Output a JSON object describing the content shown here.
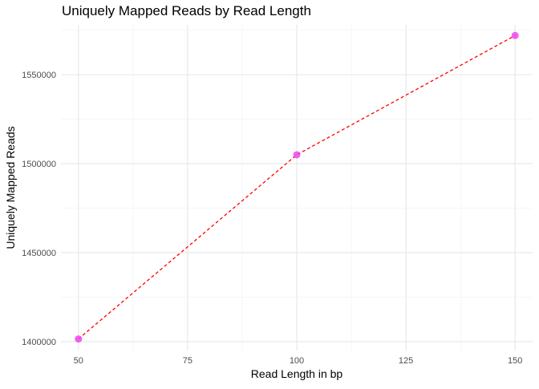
{
  "chart_data": {
    "type": "line",
    "title": "Uniquely Mapped Reads by Read Length",
    "xlabel": "Read Length in bp",
    "ylabel": "Uniquely Mapped Reads",
    "x": [
      50,
      100,
      150
    ],
    "series": [
      {
        "values": [
          1401500,
          1505000,
          1572000
        ]
      }
    ],
    "xlim": [
      46,
      154
    ],
    "ylim": [
      1395000,
      1578000
    ],
    "x_ticks": [
      50,
      75,
      100,
      125,
      150
    ],
    "x_tick_labels": [
      "50",
      "75",
      "100",
      "125",
      "150"
    ],
    "y_ticks": [
      1400000,
      1450000,
      1500000,
      1550000
    ],
    "y_tick_labels": [
      "1400000",
      "1450000",
      "1500000",
      "1550000"
    ],
    "grid": true,
    "legend": "none",
    "colors": {
      "line": "#ff0000",
      "point": "#ee44ee",
      "grid_major": "#e6e6e6",
      "grid_minor": "#f2f2f2",
      "text": "#4d4d4d"
    },
    "line_style": "dashed"
  }
}
